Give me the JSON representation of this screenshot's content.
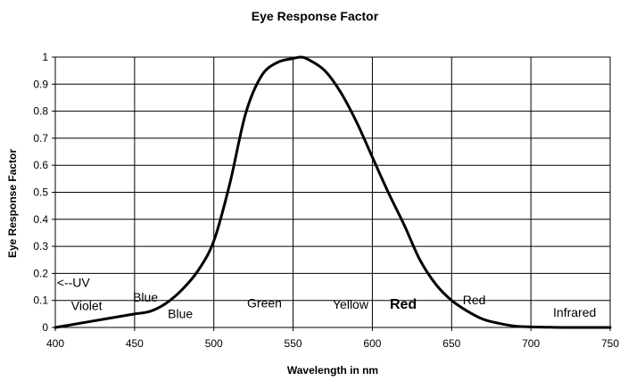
{
  "chart_data": {
    "type": "line",
    "title": "Eye Response Factor",
    "xlabel": "Wavelength in nm",
    "ylabel": "Eye Response Factor",
    "xlim": [
      400,
      750
    ],
    "ylim": [
      0,
      1
    ],
    "x_ticks": [
      "400",
      "450",
      "500",
      "550",
      "600",
      "650",
      "700",
      "750"
    ],
    "y_ticks": [
      "0",
      "0.1",
      "0.2",
      "0.3",
      "0.4",
      "0.5",
      "0.6",
      "0.7",
      "0.8",
      "0.9",
      "1"
    ],
    "grid": true,
    "legend": "none",
    "series": [
      {
        "x": [
          400,
          410,
          420,
          430,
          440,
          450,
          460,
          470,
          480,
          490,
          500,
          510,
          520,
          530,
          540,
          550,
          555,
          560,
          570,
          580,
          590,
          600,
          610,
          620,
          630,
          640,
          650,
          660,
          670,
          680,
          690,
          700,
          710,
          720,
          750
        ],
        "y": [
          0.0,
          0.01,
          0.02,
          0.03,
          0.04,
          0.05,
          0.06,
          0.09,
          0.14,
          0.21,
          0.32,
          0.53,
          0.79,
          0.93,
          0.98,
          0.995,
          1.0,
          0.99,
          0.95,
          0.87,
          0.76,
          0.63,
          0.5,
          0.38,
          0.25,
          0.16,
          0.1,
          0.06,
          0.03,
          0.015,
          0.005,
          0.002,
          0.001,
          0.0,
          0.0
        ]
      }
    ],
    "annotations": [
      {
        "text": "<--UV",
        "x": 401,
        "y": 0.15,
        "style": "normal"
      },
      {
        "text": "Violet",
        "x": 410,
        "y": 0.065,
        "style": "normal"
      },
      {
        "text": "Blue",
        "x": 449,
        "y": 0.095,
        "style": "normal"
      },
      {
        "text": "Blue",
        "x": 471,
        "y": 0.035,
        "style": "normal"
      },
      {
        "text": "Green",
        "x": 521,
        "y": 0.075,
        "style": "normal"
      },
      {
        "text": "Yellow",
        "x": 575,
        "y": 0.07,
        "style": "normal"
      },
      {
        "text": "Red",
        "x": 611,
        "y": 0.07,
        "style": "bold"
      },
      {
        "text": "Red",
        "x": 657,
        "y": 0.085,
        "style": "normal"
      },
      {
        "text": "Infrared",
        "x": 714,
        "y": 0.04,
        "style": "normal"
      }
    ]
  }
}
